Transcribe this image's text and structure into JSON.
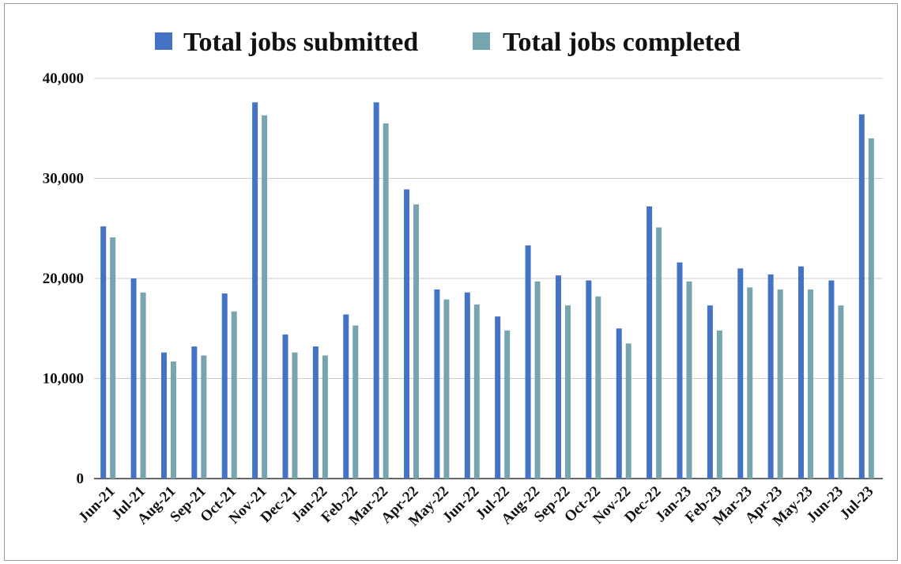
{
  "chart_data": {
    "type": "bar",
    "title": "",
    "xlabel": "",
    "ylabel": "",
    "ylim": [
      0,
      40000
    ],
    "yticks": [
      "0",
      "10,000",
      "20,000",
      "30,000",
      "40,000"
    ],
    "grid": true,
    "legend_position": "top",
    "categories": [
      "Jun-21",
      "Jul-21",
      "Aug-21",
      "Sep-21",
      "Oct-21",
      "Nov-21",
      "Dec-21",
      "Jan-22",
      "Feb-22",
      "Mar-22",
      "Apr-22",
      "May-22",
      "Jun-22",
      "Jul-22",
      "Aug-22",
      "Sep-22",
      "Oct-22",
      "Nov-22",
      "Dec-22",
      "Jan-23",
      "Feb-23",
      "Mar-23",
      "Apr-23",
      "May-23",
      "Jun-23",
      "Jul-23"
    ],
    "series": [
      {
        "name": "Total jobs submitted",
        "color": "#4472c4",
        "values": [
          25200,
          20000,
          12600,
          13200,
          18500,
          37600,
          14400,
          13200,
          16400,
          37600,
          28900,
          18900,
          18600,
          16200,
          23300,
          20300,
          19800,
          15000,
          27200,
          21600,
          17300,
          21000,
          20400,
          21200,
          19800,
          36400
        ]
      },
      {
        "name": "Total jobs completed",
        "color": "#76a5af",
        "values": [
          24100,
          18600,
          11700,
          12300,
          16700,
          36300,
          12600,
          12300,
          15300,
          35500,
          27400,
          17900,
          17400,
          14800,
          19700,
          17300,
          18200,
          13500,
          25100,
          19700,
          14800,
          19100,
          18900,
          18900,
          17300,
          34000
        ]
      }
    ]
  }
}
